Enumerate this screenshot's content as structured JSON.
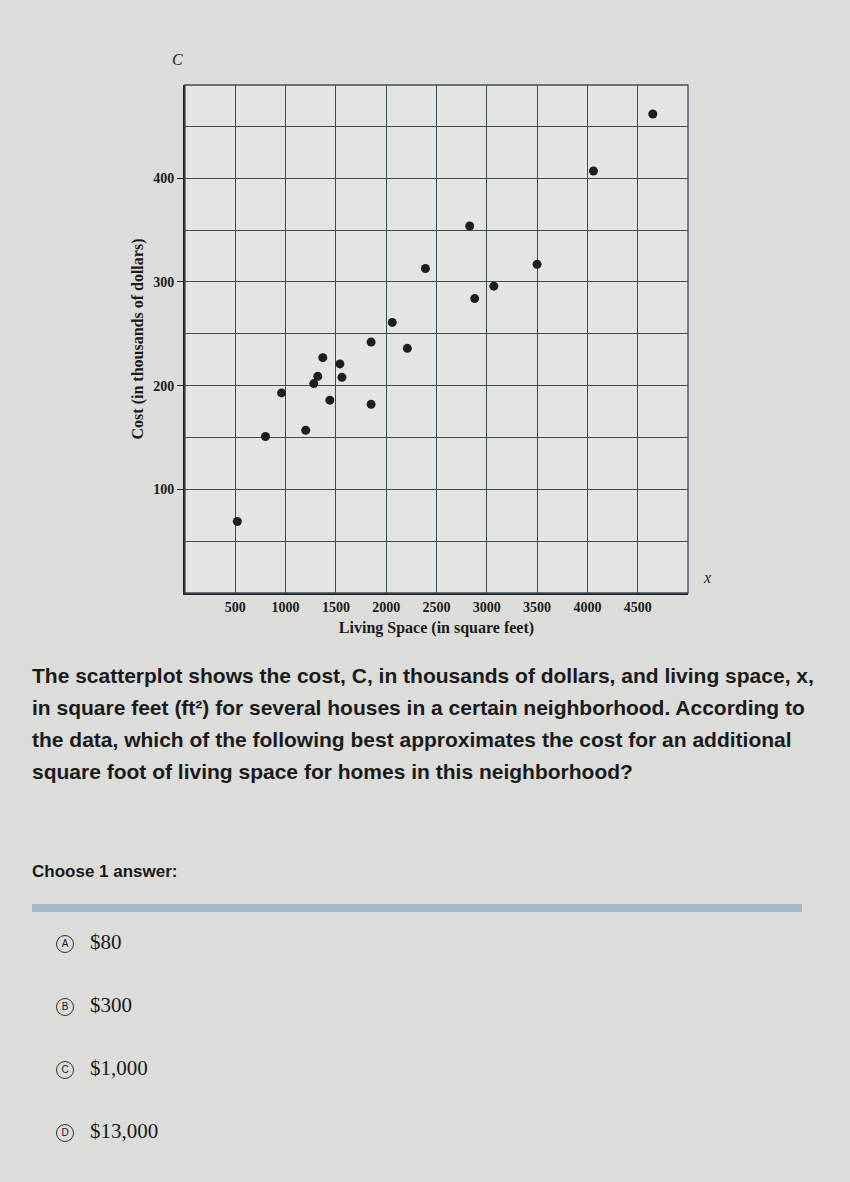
{
  "chart_data": {
    "type": "scatter",
    "x_label": "Living Space (in square feet)",
    "y_label": "Cost (in thousands of dollars)",
    "x_axis_letter": "x",
    "y_axis_letter": "C",
    "x": [
      520,
      800,
      960,
      1200,
      1280,
      1320,
      1370,
      1540,
      1560,
      1440,
      1850,
      1850,
      2060,
      2210,
      2390,
      2830,
      2880,
      3070,
      3500,
      4060,
      4650
    ],
    "values": [
      69,
      151,
      193,
      157,
      202,
      209,
      227,
      221,
      208,
      186,
      182,
      242,
      261,
      236,
      313,
      354,
      284,
      296,
      317,
      407,
      462
    ],
    "color": "#1e1e1e",
    "marker": "circle",
    "xlim": [
      0,
      5000
    ],
    "xticks": [
      500,
      1000,
      1500,
      2000,
      2500,
      3000,
      3500,
      4000,
      4500
    ],
    "ylim": [
      0,
      490
    ],
    "yticks": [
      100,
      200,
      300,
      400
    ],
    "grid": true
  },
  "question": {
    "text": "The scatterplot shows the cost, C, in thousands of dollars, and living space, x, in square feet (ft²) for several houses in a certain neighborhood. According to the data, which of the following best approximates the cost for an additional square foot of living space for homes in this neighborhood?",
    "prompt": "Choose 1 answer:",
    "choices": [
      {
        "letter": "A",
        "text": "$80"
      },
      {
        "letter": "B",
        "text": "$300"
      },
      {
        "letter": "C",
        "text": "$1,000"
      },
      {
        "letter": "D",
        "text": "$13,000"
      }
    ]
  }
}
